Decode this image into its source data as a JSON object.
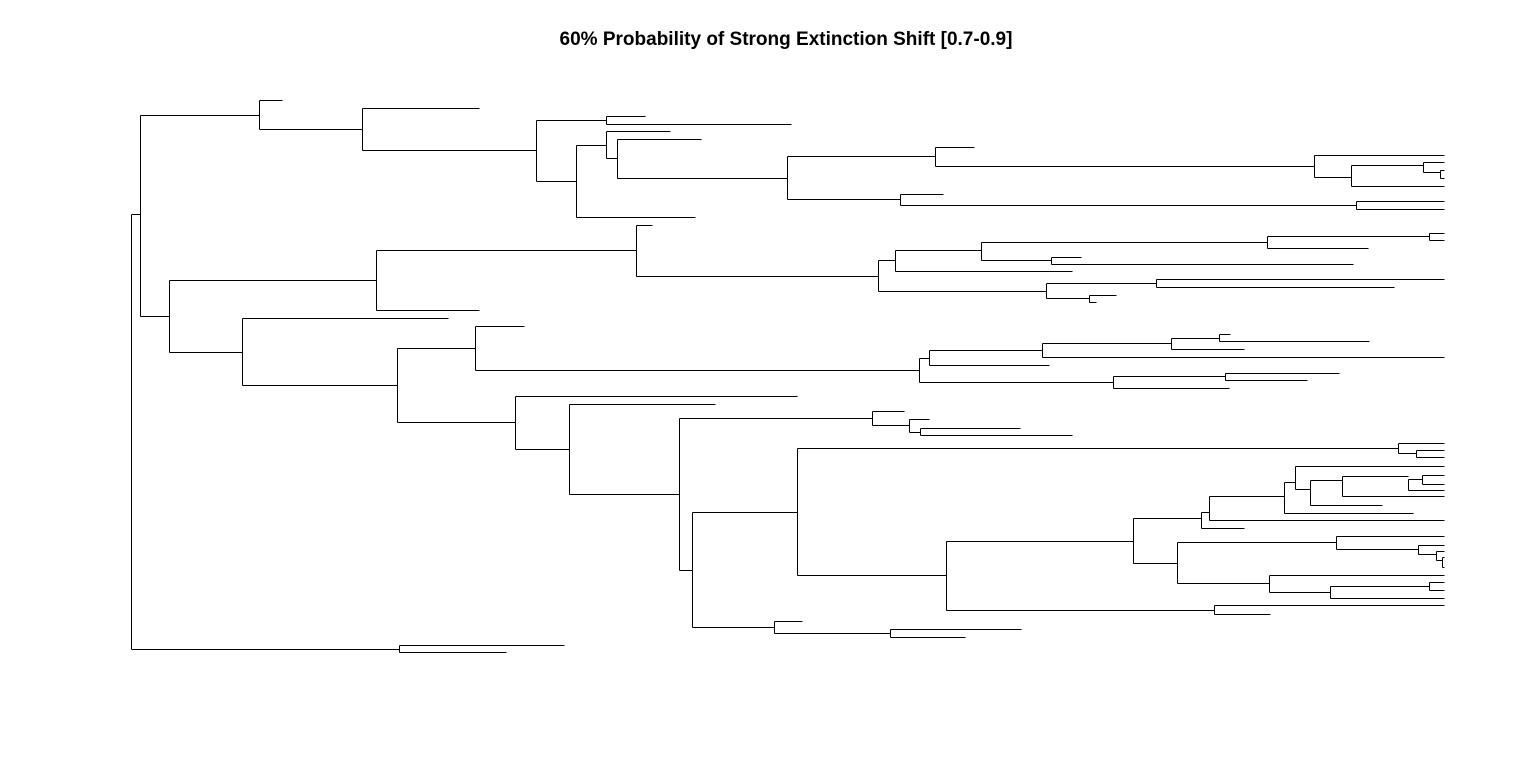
{
  "title": "60% Probability of Strong Extinction Shift [0.7-0.9]",
  "chart_data": {
    "type": "phylogenetic-tree",
    "title": "60% Probability of Strong Extinction Shift [0.7-0.9]",
    "orientation": "rightwards",
    "axis_shown": false,
    "tip_labels_shown": false,
    "branch_color": "#000000",
    "background": "#ffffff"
  }
}
